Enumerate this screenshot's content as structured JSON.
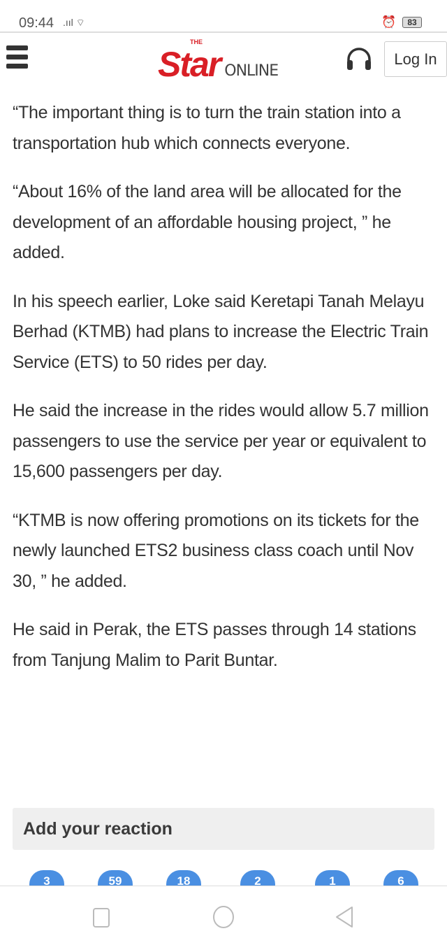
{
  "status_bar": {
    "time": "09:44",
    "battery": "83"
  },
  "header": {
    "logo_the": "THE",
    "logo_star": "Star",
    "logo_online": "ONLINE",
    "login_label": "Log In"
  },
  "article": {
    "paragraphs": [
      "“The important thing is to turn the train station into a transportation hub which connects everyone.",
      "“About 16% of the land area will be allocated for the development of an affordable housing project, ” he added.",
      "In his speech earlier, Loke said Keretapi Tanah Melayu Berhad (KTMB) had plans to increase the Electric Train Service (ETS) to 50 rides per day.",
      "He said the increase in the rides would allow 5.7 million passengers to use the service per year or equivalent to 15,600 passengers per day.",
      "“KTMB is now offering promotions on its tickets for the newly launched ETS2 business class coach until Nov 30, ” he added.",
      "He said in Perak, the ETS passes through 14 stations from Tanjung Malim to Parit Buntar."
    ]
  },
  "reactions": {
    "title": "Add your reaction",
    "counts": [
      "3",
      "59",
      "18",
      "2",
      "1",
      "6"
    ],
    "accent": "#4a8fe2"
  },
  "colors": {
    "brand": "#d91f26"
  }
}
